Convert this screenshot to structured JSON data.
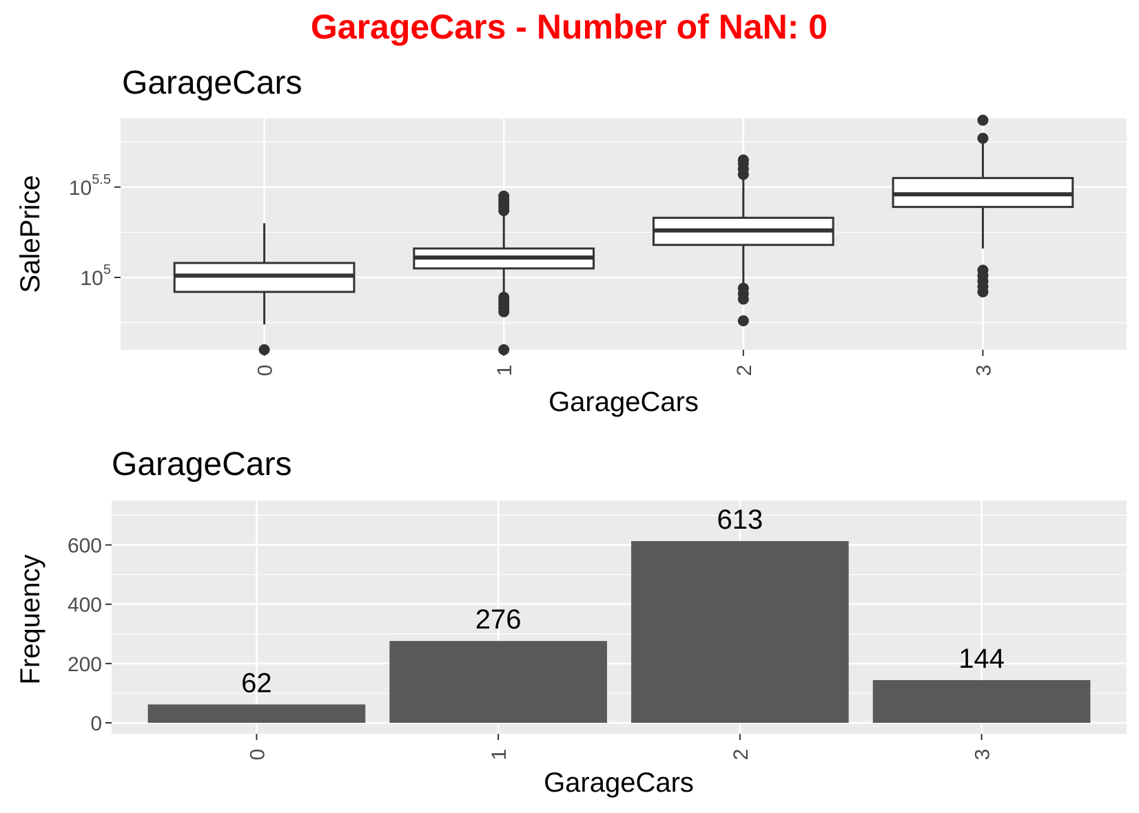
{
  "page_title": "GarageCars - Number of NaN: 0",
  "colors": {
    "title": "#ff0000",
    "panel_bg": "#ebebeb",
    "grid": "#ffffff",
    "bar_fill": "#595959",
    "box_line": "#333333"
  },
  "chart_data": [
    {
      "type": "box",
      "title": "GarageCars",
      "xlabel": "GarageCars",
      "ylabel": "SalePrice",
      "y_scale": "log10",
      "ylim": [
        4.6,
        5.88
      ],
      "yticks": [
        {
          "value": 5,
          "base": "10",
          "exp": "5"
        },
        {
          "value": 5.5,
          "base": "10",
          "exp": "5.5"
        }
      ],
      "categories": [
        "0",
        "1",
        "2",
        "3"
      ],
      "boxes": [
        {
          "category": "0",
          "q1": 4.92,
          "median": 5.01,
          "q3": 5.08,
          "whisker_low": 4.74,
          "whisker_high": 5.3,
          "outliers": [
            4.6
          ]
        },
        {
          "category": "1",
          "q1": 5.05,
          "median": 5.11,
          "q3": 5.16,
          "whisker_low": 4.79,
          "whisker_high": 5.39,
          "outliers": [
            4.81,
            4.83,
            4.85,
            4.87,
            4.89,
            5.37,
            5.39,
            5.41,
            5.43,
            5.45,
            4.6
          ]
        },
        {
          "category": "2",
          "q1": 5.18,
          "median": 5.26,
          "q3": 5.33,
          "whisker_low": 4.96,
          "whisker_high": 5.6,
          "outliers": [
            4.76,
            4.88,
            4.91,
            4.94,
            5.57,
            5.6,
            5.63,
            5.65
          ]
        },
        {
          "category": "3",
          "q1": 5.39,
          "median": 5.46,
          "q3": 5.55,
          "whisker_low": 5.16,
          "whisker_high": 5.76,
          "outliers": [
            4.92,
            4.95,
            4.98,
            5.01,
            5.04,
            5.77,
            5.87
          ]
        }
      ]
    },
    {
      "type": "bar",
      "title": "GarageCars",
      "xlabel": "GarageCars",
      "ylabel": "Frequency",
      "ylim": [
        0,
        750
      ],
      "yticks": [
        0,
        200,
        400,
        600
      ],
      "categories": [
        "0",
        "1",
        "2",
        "3"
      ],
      "values": [
        62,
        276,
        613,
        144
      ],
      "data_labels": [
        "62",
        "276",
        "613",
        "144"
      ]
    }
  ]
}
